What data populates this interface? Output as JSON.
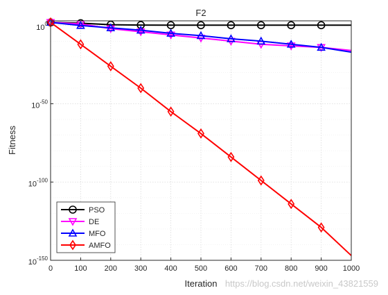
{
  "chart_data": {
    "type": "line",
    "title": "F2",
    "xlabel": "Iteration",
    "ylabel": "Fitness",
    "y_scale": "log",
    "xlim": [
      0,
      1000
    ],
    "ylim_exponent": [
      -150,
      3
    ],
    "x_ticks": [
      0,
      100,
      200,
      300,
      400,
      500,
      600,
      700,
      800,
      900,
      1000
    ],
    "y_ticks": [
      {
        "exp": 0,
        "base": "10",
        "sup": "0"
      },
      {
        "exp": -50,
        "base": "10",
        "sup": "-50"
      },
      {
        "exp": -100,
        "base": "10",
        "sup": "-100"
      },
      {
        "exp": -150,
        "base": "10",
        "sup": "-150"
      }
    ],
    "grid": true,
    "legend_position": "bottom-left",
    "series": [
      {
        "name": "PSO",
        "color": "#000000",
        "marker": "circle",
        "x": [
          0,
          100,
          200,
          300,
          400,
          500,
          600,
          700,
          800,
          900,
          1000
        ],
        "log10_y": [
          2,
          1.5,
          0.5,
          0.3,
          0.2,
          0.2,
          0.2,
          0.2,
          0.2,
          0.2,
          0.2
        ]
      },
      {
        "name": "DE",
        "color": "#ff00ff",
        "marker": "triangle-down",
        "x": [
          0,
          100,
          200,
          300,
          400,
          500,
          600,
          700,
          800,
          900,
          1000
        ],
        "log10_y": [
          2,
          1,
          -2,
          -4,
          -6,
          -8,
          -10,
          -12,
          -13,
          -14,
          -16
        ]
      },
      {
        "name": "MFO",
        "color": "#0000ff",
        "marker": "triangle-up",
        "x": [
          0,
          100,
          200,
          300,
          400,
          500,
          600,
          700,
          800,
          900,
          1000
        ],
        "log10_y": [
          2,
          0,
          -1.5,
          -3,
          -5,
          -6.5,
          -8.5,
          -10,
          -12,
          -14,
          -17
        ]
      },
      {
        "name": "AMFO",
        "color": "#ff0000",
        "marker": "diamond",
        "x": [
          0,
          100,
          200,
          300,
          400,
          500,
          600,
          700,
          800,
          900,
          1000
        ],
        "log10_y": [
          2,
          -12,
          -26,
          -40,
          -55,
          -69,
          -84,
          -99,
          -114,
          -129,
          -147
        ]
      }
    ]
  },
  "watermark": "https://blog.csdn.net/weixin_43821559"
}
